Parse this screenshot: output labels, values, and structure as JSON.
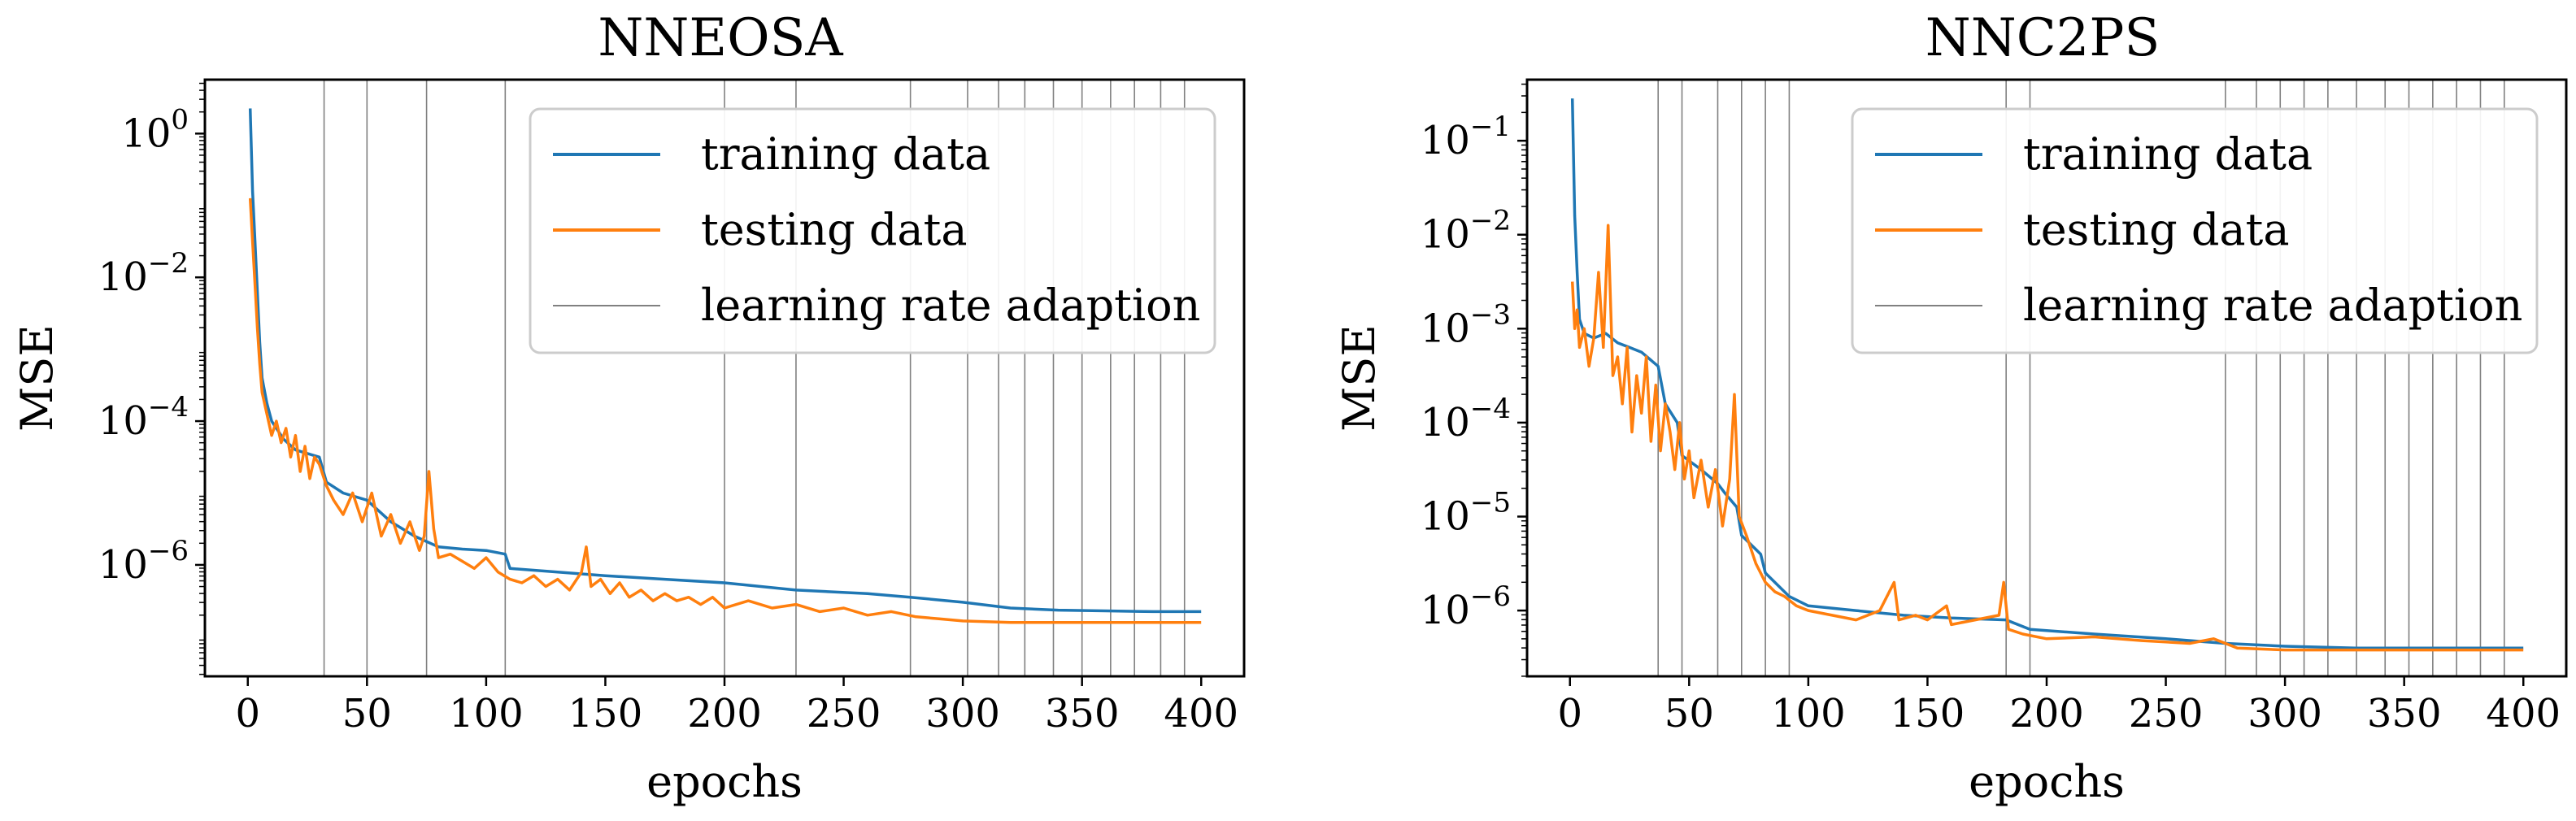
{
  "chart_data": [
    {
      "type": "line",
      "title": "NNEOSA",
      "xlabel": "epochs",
      "ylabel": "MSE",
      "yscale": "log",
      "xlim": [
        -18,
        418
      ],
      "ylim_log10": [
        -7.55,
        0.75
      ],
      "xticks": [
        0,
        50,
        100,
        150,
        200,
        250,
        300,
        350,
        400
      ],
      "xtick_labels": [
        "0",
        "50",
        "100",
        "150",
        "200",
        "250",
        "300",
        "350",
        "400"
      ],
      "yticks_log10": [
        0,
        -2,
        -4,
        -6
      ],
      "ytick_labels": [
        {
          "base": "10",
          "exp": "0"
        },
        {
          "base": "10",
          "exp": "−2"
        },
        {
          "base": "10",
          "exp": "−4"
        },
        {
          "base": "10",
          "exp": "−6"
        }
      ],
      "legend": [
        "training data",
        "testing data",
        "learning rate adaption"
      ],
      "legend_position": "top-right",
      "lr_adaption_epochs": [
        32,
        50,
        75,
        108,
        200,
        230,
        278,
        302,
        315,
        326,
        338,
        350,
        362,
        372,
        383,
        393
      ],
      "series": [
        {
          "name": "training data",
          "color": "#1f77b4",
          "points": [
            [
              1,
              0.35
            ],
            [
              2,
              -0.8
            ],
            [
              3,
              -1.5
            ],
            [
              4,
              -2.2
            ],
            [
              5,
              -2.9
            ],
            [
              6,
              -3.4
            ],
            [
              8,
              -3.75
            ],
            [
              10,
              -4.0
            ],
            [
              15,
              -4.25
            ],
            [
              20,
              -4.4
            ],
            [
              25,
              -4.45
            ],
            [
              30,
              -4.5
            ],
            [
              33,
              -4.85
            ],
            [
              40,
              -5.0
            ],
            [
              50,
              -5.1
            ],
            [
              60,
              -5.4
            ],
            [
              70,
              -5.6
            ],
            [
              80,
              -5.75
            ],
            [
              90,
              -5.78
            ],
            [
              100,
              -5.8
            ],
            [
              108,
              -5.85
            ],
            [
              110,
              -6.05
            ],
            [
              130,
              -6.1
            ],
            [
              150,
              -6.15
            ],
            [
              175,
              -6.2
            ],
            [
              200,
              -6.25
            ],
            [
              230,
              -6.35
            ],
            [
              260,
              -6.4
            ],
            [
              278,
              -6.45
            ],
            [
              300,
              -6.52
            ],
            [
              320,
              -6.6
            ],
            [
              340,
              -6.63
            ],
            [
              360,
              -6.64
            ],
            [
              380,
              -6.65
            ],
            [
              400,
              -6.65
            ]
          ]
        },
        {
          "name": "testing data",
          "color": "#ff7f0e",
          "points": [
            [
              1,
              -0.9
            ],
            [
              2,
              -1.5
            ],
            [
              3,
              -2.1
            ],
            [
              4,
              -2.7
            ],
            [
              5,
              -3.2
            ],
            [
              6,
              -3.6
            ],
            [
              8,
              -3.9
            ],
            [
              10,
              -4.2
            ],
            [
              12,
              -4.0
            ],
            [
              14,
              -4.3
            ],
            [
              16,
              -4.1
            ],
            [
              18,
              -4.5
            ],
            [
              20,
              -4.2
            ],
            [
              22,
              -4.7
            ],
            [
              24,
              -4.35
            ],
            [
              26,
              -4.8
            ],
            [
              28,
              -4.5
            ],
            [
              30,
              -4.6
            ],
            [
              33,
              -4.9
            ],
            [
              36,
              -5.1
            ],
            [
              40,
              -5.3
            ],
            [
              44,
              -5.0
            ],
            [
              48,
              -5.4
            ],
            [
              52,
              -5.0
            ],
            [
              56,
              -5.6
            ],
            [
              60,
              -5.3
            ],
            [
              64,
              -5.7
            ],
            [
              68,
              -5.4
            ],
            [
              72,
              -5.8
            ],
            [
              74,
              -5.6
            ],
            [
              76,
              -4.7
            ],
            [
              78,
              -5.5
            ],
            [
              80,
              -5.9
            ],
            [
              85,
              -5.85
            ],
            [
              90,
              -5.95
            ],
            [
              95,
              -6.05
            ],
            [
              100,
              -5.9
            ],
            [
              105,
              -6.1
            ],
            [
              110,
              -6.2
            ],
            [
              115,
              -6.25
            ],
            [
              120,
              -6.15
            ],
            [
              125,
              -6.3
            ],
            [
              130,
              -6.2
            ],
            [
              135,
              -6.35
            ],
            [
              140,
              -6.1
            ],
            [
              142,
              -5.75
            ],
            [
              144,
              -6.3
            ],
            [
              148,
              -6.2
            ],
            [
              152,
              -6.4
            ],
            [
              156,
              -6.25
            ],
            [
              160,
              -6.45
            ],
            [
              165,
              -6.35
            ],
            [
              170,
              -6.5
            ],
            [
              175,
              -6.4
            ],
            [
              180,
              -6.5
            ],
            [
              185,
              -6.45
            ],
            [
              190,
              -6.55
            ],
            [
              195,
              -6.45
            ],
            [
              200,
              -6.6
            ],
            [
              210,
              -6.5
            ],
            [
              220,
              -6.6
            ],
            [
              230,
              -6.55
            ],
            [
              240,
              -6.65
            ],
            [
              250,
              -6.6
            ],
            [
              260,
              -6.7
            ],
            [
              270,
              -6.65
            ],
            [
              280,
              -6.72
            ],
            [
              290,
              -6.75
            ],
            [
              300,
              -6.78
            ],
            [
              320,
              -6.8
            ],
            [
              340,
              -6.8
            ],
            [
              360,
              -6.8
            ],
            [
              380,
              -6.8
            ],
            [
              400,
              -6.8
            ]
          ]
        }
      ]
    },
    {
      "type": "line",
      "title": "NNC2PS",
      "xlabel": "epochs",
      "ylabel": "MSE",
      "yscale": "log",
      "xlim": [
        -18,
        418
      ],
      "ylim_log10": [
        -6.7,
        -0.35
      ],
      "xticks": [
        0,
        50,
        100,
        150,
        200,
        250,
        300,
        350,
        400
      ],
      "xtick_labels": [
        "0",
        "50",
        "100",
        "150",
        "200",
        "250",
        "300",
        "350",
        "400"
      ],
      "yticks_log10": [
        -1,
        -2,
        -3,
        -4,
        -5,
        -6
      ],
      "ytick_labels": [
        {
          "base": "10",
          "exp": "−1"
        },
        {
          "base": "10",
          "exp": "−2"
        },
        {
          "base": "10",
          "exp": "−3"
        },
        {
          "base": "10",
          "exp": "−4"
        },
        {
          "base": "10",
          "exp": "−5"
        },
        {
          "base": "10",
          "exp": "−6"
        }
      ],
      "legend": [
        "training data",
        "testing data",
        "learning rate adaption"
      ],
      "legend_position": "top-right",
      "lr_adaption_epochs": [
        37,
        47,
        62,
        72,
        82,
        92,
        183,
        193,
        275,
        288,
        298,
        308,
        318,
        330,
        342,
        352,
        362,
        372,
        382,
        392
      ],
      "series": [
        {
          "name": "training data",
          "color": "#1f77b4",
          "points": [
            [
              1,
              -0.55
            ],
            [
              2,
              -1.8
            ],
            [
              3,
              -2.4
            ],
            [
              4,
              -2.9
            ],
            [
              6,
              -3.05
            ],
            [
              10,
              -3.1
            ],
            [
              15,
              -3.05
            ],
            [
              20,
              -3.15
            ],
            [
              25,
              -3.2
            ],
            [
              30,
              -3.25
            ],
            [
              37,
              -3.4
            ],
            [
              40,
              -3.8
            ],
            [
              45,
              -4.0
            ],
            [
              47,
              -4.35
            ],
            [
              55,
              -4.5
            ],
            [
              62,
              -4.65
            ],
            [
              65,
              -4.75
            ],
            [
              70,
              -4.9
            ],
            [
              72,
              -5.2
            ],
            [
              80,
              -5.4
            ],
            [
              82,
              -5.6
            ],
            [
              92,
              -5.85
            ],
            [
              100,
              -5.95
            ],
            [
              120,
              -6.0
            ],
            [
              140,
              -6.05
            ],
            [
              160,
              -6.08
            ],
            [
              183,
              -6.1
            ],
            [
              193,
              -6.2
            ],
            [
              220,
              -6.25
            ],
            [
              250,
              -6.3
            ],
            [
              275,
              -6.35
            ],
            [
              300,
              -6.38
            ],
            [
              330,
              -6.4
            ],
            [
              360,
              -6.4
            ],
            [
              400,
              -6.4
            ]
          ]
        },
        {
          "name": "testing data",
          "color": "#ff7f0e",
          "points": [
            [
              1,
              -2.5
            ],
            [
              2,
              -3.0
            ],
            [
              3,
              -2.8
            ],
            [
              4,
              -3.2
            ],
            [
              6,
              -3.0
            ],
            [
              8,
              -3.4
            ],
            [
              10,
              -3.1
            ],
            [
              12,
              -2.4
            ],
            [
              14,
              -3.2
            ],
            [
              16,
              -1.9
            ],
            [
              18,
              -3.5
            ],
            [
              20,
              -3.3
            ],
            [
              22,
              -3.8
            ],
            [
              24,
              -3.2
            ],
            [
              26,
              -4.1
            ],
            [
              28,
              -3.5
            ],
            [
              30,
              -3.9
            ],
            [
              32,
              -3.3
            ],
            [
              34,
              -4.2
            ],
            [
              36,
              -3.6
            ],
            [
              38,
              -4.3
            ],
            [
              40,
              -3.8
            ],
            [
              42,
              -4.1
            ],
            [
              44,
              -4.5
            ],
            [
              46,
              -4.0
            ],
            [
              48,
              -4.6
            ],
            [
              50,
              -4.3
            ],
            [
              52,
              -4.8
            ],
            [
              55,
              -4.4
            ],
            [
              58,
              -4.9
            ],
            [
              61,
              -4.5
            ],
            [
              64,
              -5.1
            ],
            [
              67,
              -4.6
            ],
            [
              69,
              -3.7
            ],
            [
              71,
              -5.0
            ],
            [
              74,
              -5.2
            ],
            [
              78,
              -5.5
            ],
            [
              82,
              -5.7
            ],
            [
              86,
              -5.8
            ],
            [
              90,
              -5.85
            ],
            [
              95,
              -5.95
            ],
            [
              100,
              -6.0
            ],
            [
              110,
              -6.05
            ],
            [
              120,
              -6.1
            ],
            [
              130,
              -6.0
            ],
            [
              136,
              -5.7
            ],
            [
              138,
              -6.1
            ],
            [
              145,
              -6.05
            ],
            [
              150,
              -6.1
            ],
            [
              158,
              -5.95
            ],
            [
              160,
              -6.15
            ],
            [
              170,
              -6.1
            ],
            [
              180,
              -6.05
            ],
            [
              182,
              -5.7
            ],
            [
              184,
              -6.2
            ],
            [
              190,
              -6.25
            ],
            [
              200,
              -6.3
            ],
            [
              220,
              -6.28
            ],
            [
              240,
              -6.32
            ],
            [
              260,
              -6.35
            ],
            [
              270,
              -6.3
            ],
            [
              280,
              -6.4
            ],
            [
              300,
              -6.42
            ],
            [
              330,
              -6.42
            ],
            [
              360,
              -6.42
            ],
            [
              400,
              -6.42
            ]
          ]
        }
      ]
    }
  ]
}
